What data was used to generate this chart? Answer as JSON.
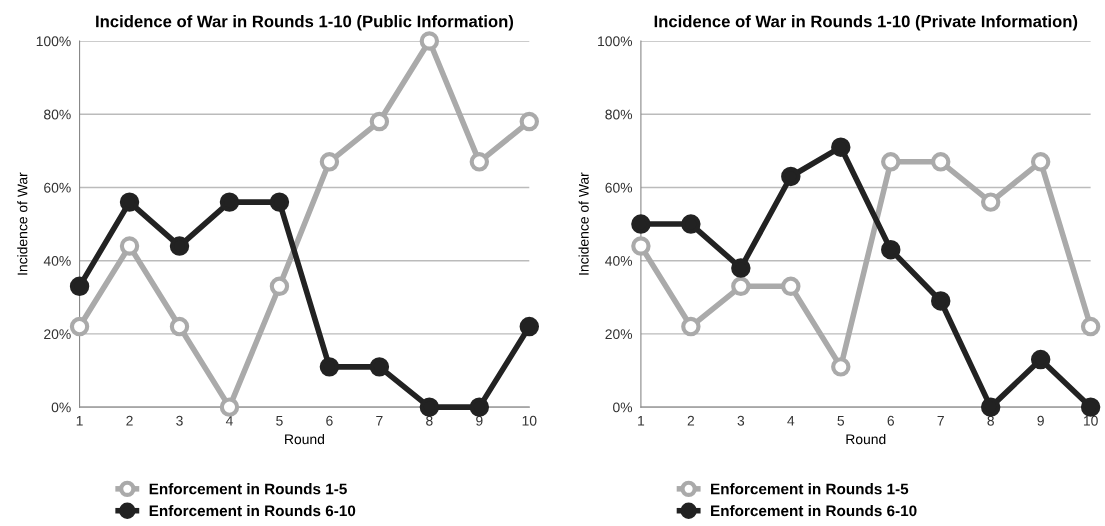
{
  "chart_data": [
    {
      "type": "line",
      "title": "Incidence of War in Rounds 1-10 (Public Information)",
      "xlabel": "Round",
      "ylabel": "Incidence of War",
      "x": [
        1,
        2,
        3,
        4,
        5,
        6,
        7,
        8,
        9,
        10
      ],
      "xlim": [
        1,
        10
      ],
      "xticks": [
        1,
        2,
        3,
        4,
        5,
        6,
        7,
        8,
        9,
        10
      ],
      "ylim": [
        0,
        100
      ],
      "yticks": [
        {
          "value": 0,
          "label": "0%"
        },
        {
          "value": 20,
          "label": "20%"
        },
        {
          "value": 40,
          "label": "40%"
        },
        {
          "value": 60,
          "label": "60%"
        },
        {
          "value": 80,
          "label": "80%"
        },
        {
          "value": 100,
          "label": "100%"
        }
      ],
      "grid": "y",
      "legend": "bottom",
      "marker": "circle",
      "line_style": "solid",
      "series": [
        {
          "name": "Enforcement in Rounds 1-5",
          "color": "#aaaaaa",
          "values": [
            22,
            44,
            22,
            0,
            33,
            67,
            78,
            100,
            67,
            78
          ]
        },
        {
          "name": "Enforcement in Rounds 6-10",
          "color": "#222222",
          "values": [
            33,
            56,
            44,
            56,
            56,
            11,
            11,
            0,
            0,
            22
          ]
        }
      ]
    },
    {
      "type": "line",
      "title": "Incidence of War in Rounds 1-10 (Private Information)",
      "xlabel": "Round",
      "ylabel": "Incidence of War",
      "x": [
        1,
        2,
        3,
        4,
        5,
        6,
        7,
        8,
        9,
        10
      ],
      "xlim": [
        1,
        10
      ],
      "xticks": [
        1,
        2,
        3,
        4,
        5,
        6,
        7,
        8,
        9,
        10
      ],
      "ylim": [
        0,
        100
      ],
      "yticks": [
        {
          "value": 0,
          "label": "0%"
        },
        {
          "value": 20,
          "label": "20%"
        },
        {
          "value": 40,
          "label": "40%"
        },
        {
          "value": 60,
          "label": "60%"
        },
        {
          "value": 80,
          "label": "80%"
        },
        {
          "value": 100,
          "label": "100%"
        }
      ],
      "grid": "y",
      "legend": "bottom",
      "marker": "circle",
      "line_style": "solid",
      "series": [
        {
          "name": "Enforcement in Rounds 1-5",
          "color": "#aaaaaa",
          "values": [
            44,
            22,
            33,
            33,
            11,
            67,
            67,
            56,
            67,
            22
          ]
        },
        {
          "name": "Enforcement in Rounds 6-10",
          "color": "#222222",
          "values": [
            50,
            50,
            38,
            63,
            71,
            43,
            29,
            0,
            13,
            0
          ]
        }
      ]
    }
  ]
}
